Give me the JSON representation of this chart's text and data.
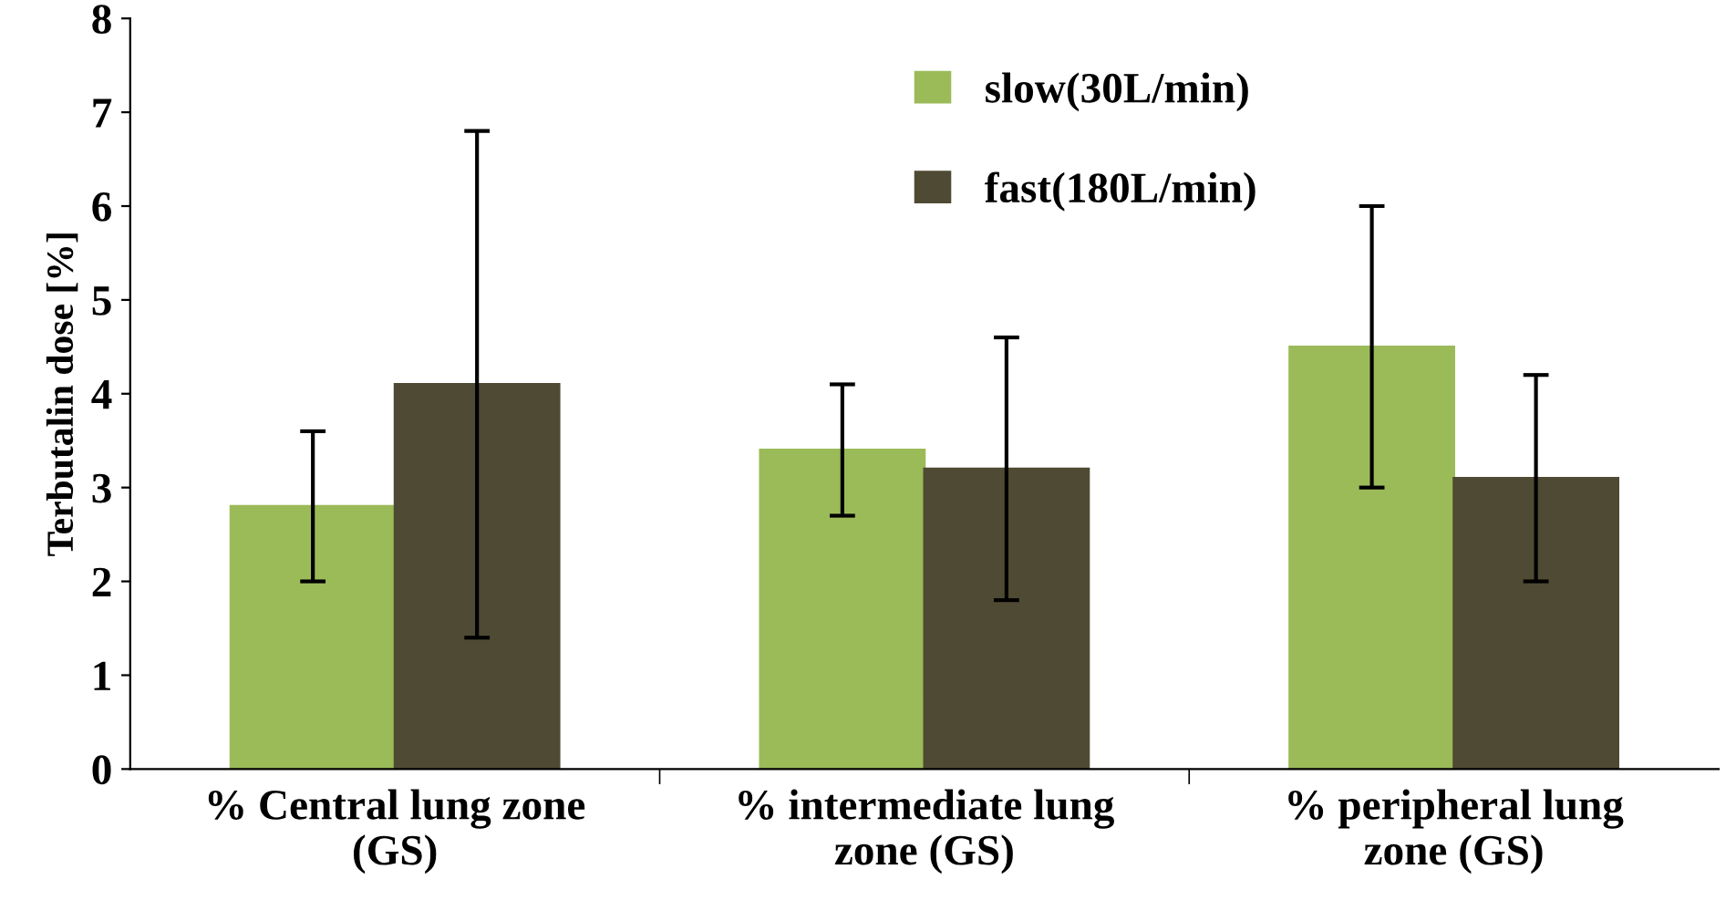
{
  "chart_data": {
    "type": "bar",
    "ylabel": "Terbutalin dose [%]",
    "categories": [
      "% Central lung zone\n(GS)",
      "% intermediate lung\nzone (GS)",
      "% peripheral lung\nzone (GS)"
    ],
    "series": [
      {
        "name": "slow(30L/min)",
        "color": "#9bbb59",
        "values": [
          2.8,
          3.4,
          4.5
        ],
        "errors": [
          0.8,
          0.7,
          1.5
        ]
      },
      {
        "name": "fast(180L/min)",
        "color": "#4f4a33",
        "values": [
          4.1,
          3.2,
          3.1
        ],
        "errors": [
          2.7,
          1.4,
          1.1
        ]
      }
    ],
    "ylim": [
      0,
      8
    ],
    "yticks": [
      0,
      1,
      2,
      3,
      4,
      5,
      6,
      7,
      8
    ],
    "grid": false,
    "legend": "top right"
  }
}
